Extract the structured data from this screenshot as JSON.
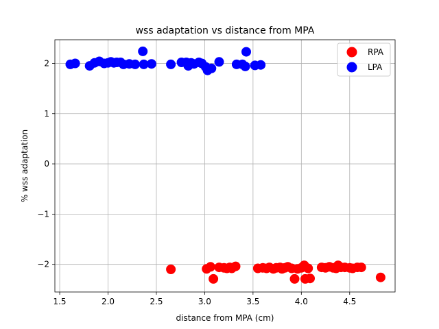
{
  "chart_data": {
    "type": "scatter",
    "title": "wss adaptation vs distance from MPA",
    "xlabel": "distance from MPA (cm)",
    "ylabel": "% wss adaptation",
    "xlim": [
      1.45,
      4.97
    ],
    "ylim": [
      -2.55,
      2.47
    ],
    "xticks": [
      1.5,
      2.0,
      2.5,
      3.0,
      3.5,
      4.0,
      4.5
    ],
    "xtick_labels": [
      "1.5",
      "2.0",
      "2.5",
      "3.0",
      "3.5",
      "4.0",
      "4.5"
    ],
    "yticks": [
      -2,
      -1,
      0,
      1,
      2
    ],
    "ytick_labels": [
      "−2",
      "−1",
      "0",
      "1",
      "2"
    ],
    "grid": true,
    "legend_position": "top-right",
    "series": [
      {
        "name": "RPA",
        "color": "#ff0000",
        "points": [
          [
            2.65,
            -2.1
          ],
          [
            3.02,
            -2.09
          ],
          [
            3.06,
            -2.05
          ],
          [
            3.09,
            -2.29
          ],
          [
            3.15,
            -2.06
          ],
          [
            3.2,
            -2.07
          ],
          [
            3.23,
            -2.08
          ],
          [
            3.26,
            -2.06
          ],
          [
            3.28,
            -2.08
          ],
          [
            3.32,
            -2.04
          ],
          [
            3.55,
            -2.08
          ],
          [
            3.6,
            -2.07
          ],
          [
            3.64,
            -2.08
          ],
          [
            3.67,
            -2.06
          ],
          [
            3.71,
            -2.09
          ],
          [
            3.74,
            -2.07
          ],
          [
            3.78,
            -2.06
          ],
          [
            3.8,
            -2.09
          ],
          [
            3.83,
            -2.07
          ],
          [
            3.86,
            -2.05
          ],
          [
            3.9,
            -2.08
          ],
          [
            3.93,
            -2.29
          ],
          [
            3.96,
            -2.09
          ],
          [
            4.0,
            -2.07
          ],
          [
            4.03,
            -2.02
          ],
          [
            4.04,
            -2.29
          ],
          [
            4.07,
            -2.08
          ],
          [
            4.09,
            -2.28
          ],
          [
            4.21,
            -2.06
          ],
          [
            4.25,
            -2.07
          ],
          [
            4.29,
            -2.05
          ],
          [
            4.33,
            -2.07
          ],
          [
            4.36,
            -2.08
          ],
          [
            4.38,
            -2.02
          ],
          [
            4.41,
            -2.06
          ],
          [
            4.45,
            -2.06
          ],
          [
            4.5,
            -2.07
          ],
          [
            4.53,
            -2.08
          ],
          [
            4.58,
            -2.06
          ],
          [
            4.62,
            -2.06
          ],
          [
            4.82,
            -2.26
          ]
        ]
      },
      {
        "name": "LPA",
        "color": "#0000ff",
        "points": [
          [
            1.61,
            1.98
          ],
          [
            1.66,
            2.0
          ],
          [
            1.81,
            1.95
          ],
          [
            1.86,
            2.01
          ],
          [
            1.91,
            2.04
          ],
          [
            1.96,
            2.0
          ],
          [
            2.0,
            2.01
          ],
          [
            2.03,
            2.03
          ],
          [
            2.06,
            2.01
          ],
          [
            2.09,
            2.02
          ],
          [
            2.13,
            2.02
          ],
          [
            2.16,
            1.98
          ],
          [
            2.22,
            1.99
          ],
          [
            2.28,
            1.98
          ],
          [
            2.36,
            2.24
          ],
          [
            2.37,
            1.98
          ],
          [
            2.45,
            1.99
          ],
          [
            2.65,
            1.98
          ],
          [
            2.76,
            2.02
          ],
          [
            2.81,
            2.02
          ],
          [
            2.83,
            1.95
          ],
          [
            2.86,
            2.01
          ],
          [
            2.89,
            1.99
          ],
          [
            2.94,
            2.02
          ],
          [
            2.97,
            2.0
          ],
          [
            3.01,
            1.93
          ],
          [
            3.03,
            1.86
          ],
          [
            3.07,
            1.9
          ],
          [
            3.15,
            2.03
          ],
          [
            3.33,
            1.98
          ],
          [
            3.39,
            1.98
          ],
          [
            3.42,
            1.94
          ],
          [
            3.43,
            2.23
          ],
          [
            3.52,
            1.96
          ],
          [
            3.58,
            1.97
          ]
        ]
      }
    ]
  }
}
